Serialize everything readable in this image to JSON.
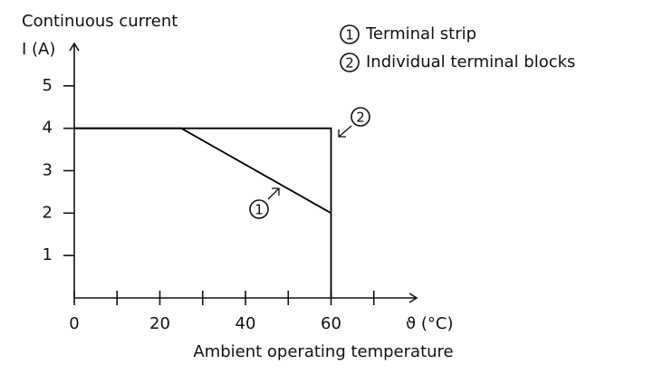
{
  "chart_data": {
    "type": "line",
    "title": "Continuous current",
    "ylabel": "I (A)",
    "xunit": "ϑ (°C)",
    "xlabel": "Ambient operating temperature",
    "xlim": [
      0,
      80
    ],
    "ylim": [
      0,
      6
    ],
    "xticks": [
      0,
      20,
      40,
      60
    ],
    "xminorticks": [
      10,
      30,
      50,
      70
    ],
    "yticks": [
      1,
      2,
      3,
      4,
      5
    ],
    "series": [
      {
        "name": "Terminal strip",
        "marker": "1",
        "color": "#000000",
        "x": [
          0,
          25,
          60
        ],
        "values": [
          4,
          4,
          2
        ]
      },
      {
        "name": "Individual terminal blocks",
        "marker": "2",
        "color": "#000000",
        "x": [
          0,
          60,
          60
        ],
        "values": [
          4,
          4,
          0
        ]
      }
    ]
  }
}
